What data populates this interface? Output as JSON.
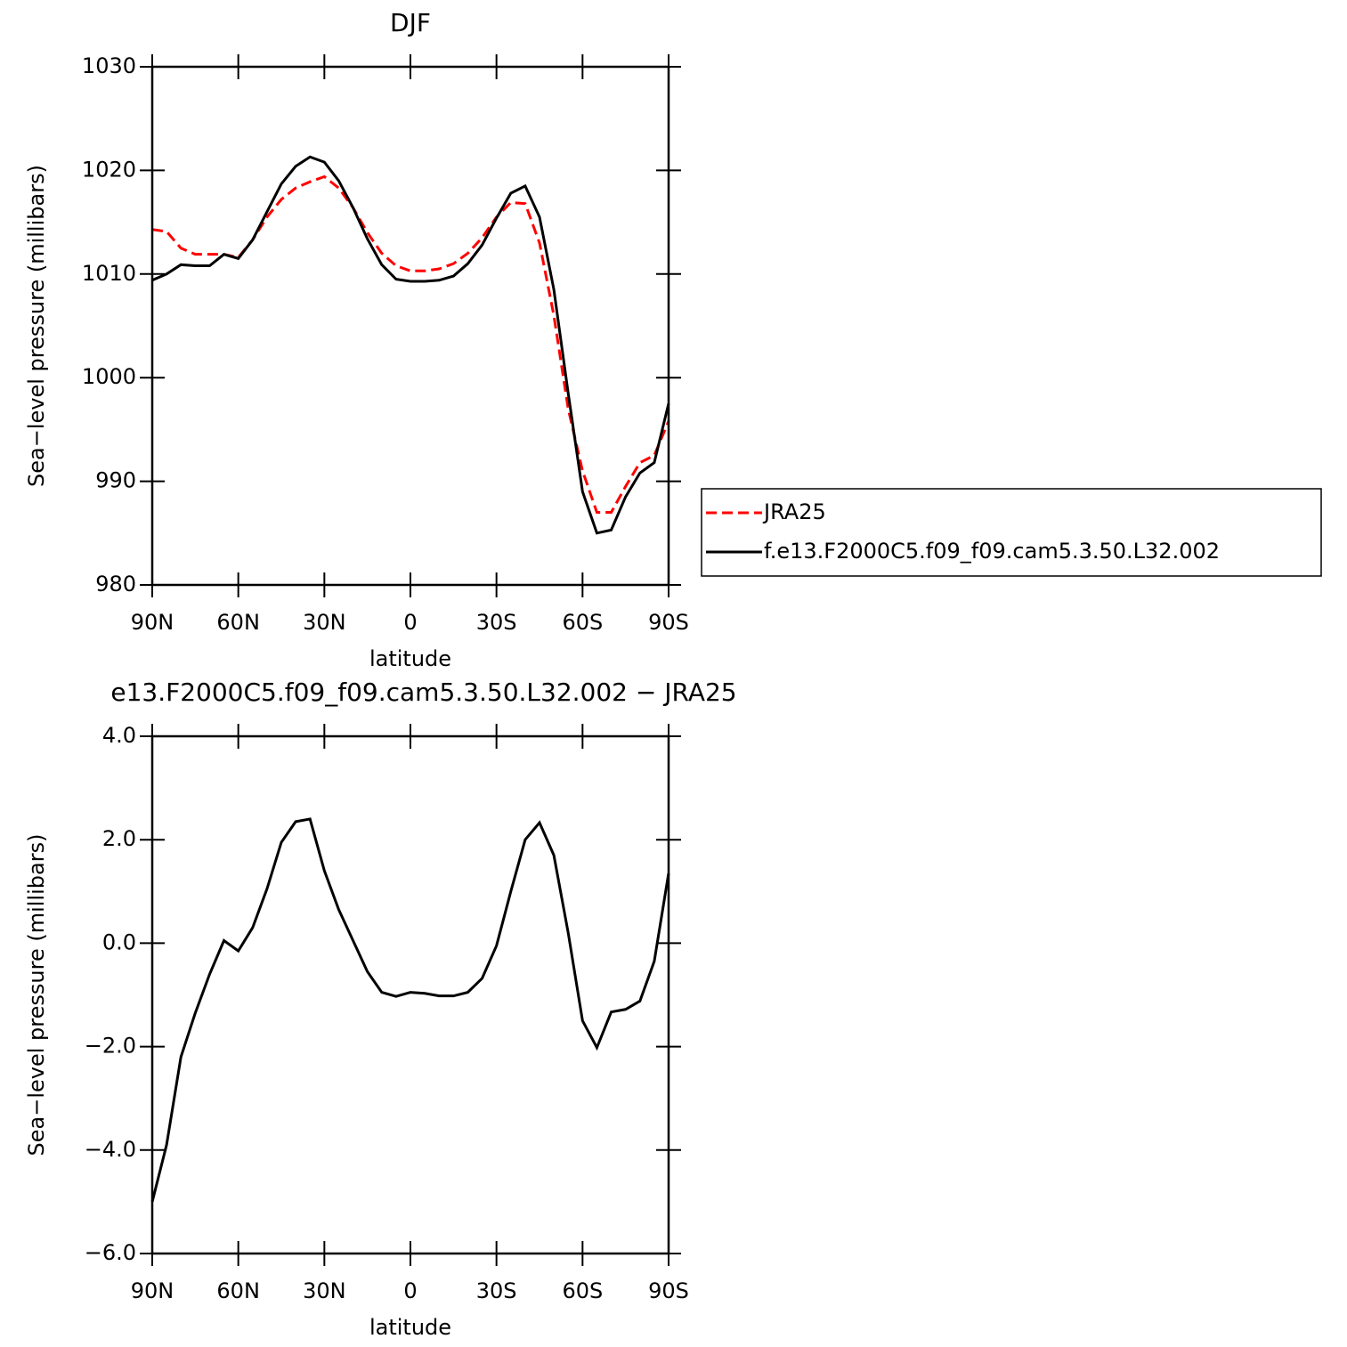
{
  "chart_data": [
    {
      "type": "line",
      "title": "DJF",
      "xlabel": "latitude",
      "ylabel": "Sea−level pressure (millibars)",
      "x": [
        90,
        85,
        80,
        75,
        70,
        65,
        60,
        55,
        50,
        45,
        40,
        35,
        30,
        25,
        20,
        15,
        10,
        5,
        0,
        -5,
        -10,
        -15,
        -20,
        -25,
        -30,
        -35,
        -40,
        -45,
        -50,
        -55,
        -60,
        -65,
        -70,
        -75,
        -80,
        -85,
        -90
      ],
      "series": [
        {
          "name": "JRA25",
          "color": "#ff0000",
          "dashed": true,
          "values": [
            1014.3,
            1014.1,
            1012.5,
            1011.9,
            1011.9,
            1011.9,
            1011.6,
            1013.3,
            1015.5,
            1017.2,
            1018.3,
            1018.9,
            1019.4,
            1018.3,
            1016.4,
            1014.0,
            1012.0,
            1010.8,
            1010.3,
            1010.3,
            1010.5,
            1011.0,
            1012.0,
            1013.5,
            1015.5,
            1016.9,
            1016.8,
            1013.0,
            1006.0,
            997.0,
            991.0,
            987.0,
            987.0,
            989.5,
            991.8,
            992.5,
            995.8
          ]
        },
        {
          "name": "f.e13.F2000C5.f09_f09.cam5.3.50.L32.002",
          "color": "#000000",
          "dashed": false,
          "values": [
            1009.4,
            1010.0,
            1010.9,
            1010.8,
            1010.8,
            1011.9,
            1011.5,
            1013.3,
            1016.0,
            1018.7,
            1020.4,
            1021.3,
            1020.8,
            1019.0,
            1016.4,
            1013.4,
            1010.9,
            1009.5,
            1009.3,
            1009.3,
            1009.4,
            1009.8,
            1011.0,
            1012.8,
            1015.4,
            1017.8,
            1018.5,
            1015.5,
            1008.5,
            998.5,
            989.0,
            985.0,
            985.3,
            988.5,
            990.8,
            991.8,
            997.5
          ]
        }
      ],
      "xlim": [
        90,
        -90
      ],
      "xticks": [
        {
          "value": 90,
          "label": "90N"
        },
        {
          "value": 60,
          "label": "60N"
        },
        {
          "value": 30,
          "label": "30N"
        },
        0,
        {
          "value": -30,
          "label": "30S"
        },
        {
          "value": -60,
          "label": "60S"
        },
        {
          "value": -90,
          "label": "90S"
        }
      ],
      "ylim": [
        980,
        1030
      ],
      "yticks": [
        980,
        990,
        1000,
        1010,
        1020,
        1030
      ],
      "legend": "right"
    },
    {
      "type": "line",
      "title": "e13.F2000C5.f09_f09.cam5.3.50.L32.002 − JRA25",
      "xlabel": "latitude",
      "ylabel": "Sea−level pressure (millibars)",
      "x": [
        90,
        85,
        80,
        75,
        70,
        65,
        60,
        55,
        50,
        45,
        40,
        35,
        30,
        25,
        20,
        15,
        10,
        5,
        0,
        -5,
        -10,
        -15,
        -20,
        -25,
        -30,
        -35,
        -40,
        -45,
        -50,
        -55,
        -60,
        -65,
        -70,
        -75,
        -80,
        -85,
        -90
      ],
      "series": [
        {
          "color": "#000000",
          "dashed": false,
          "values": [
            -5.0,
            -3.9,
            -2.2,
            -1.35,
            -0.6,
            0.05,
            -0.15,
            0.3,
            1.05,
            1.95,
            2.35,
            2.4,
            1.4,
            0.65,
            0.05,
            -0.55,
            -0.95,
            -1.03,
            -0.95,
            -0.97,
            -1.02,
            -1.02,
            -0.95,
            -0.68,
            -0.05,
            1.0,
            2.0,
            2.33,
            1.7,
            0.2,
            -1.5,
            -2.02,
            -1.33,
            -1.28,
            -1.12,
            -0.35,
            1.35
          ]
        }
      ],
      "xlim": [
        90,
        -90
      ],
      "xticks": [
        {
          "value": 90,
          "label": "90N"
        },
        {
          "value": 60,
          "label": "60N"
        },
        {
          "value": 30,
          "label": "30N"
        },
        0,
        {
          "value": -30,
          "label": "30S"
        },
        {
          "value": -60,
          "label": "60S"
        },
        {
          "value": -90,
          "label": "90S"
        }
      ],
      "ylim": [
        -6,
        4
      ],
      "yticks": [
        {
          "value": -6,
          "label": "−6.0"
        },
        {
          "value": -4,
          "label": "−4.0"
        },
        {
          "value": -2,
          "label": "−2.0"
        },
        {
          "value": 0,
          "label": "0.0"
        },
        {
          "value": 2,
          "label": "2.0"
        },
        {
          "value": 4,
          "label": "4.0"
        }
      ]
    }
  ]
}
